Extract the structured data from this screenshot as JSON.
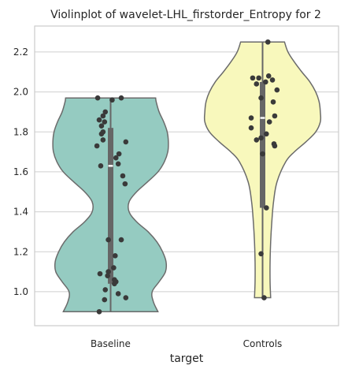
{
  "chart_data": {
    "type": "violin",
    "title": "Violinplot of wavelet-LHL_firstorder_Entropy for 2",
    "xlabel": "target",
    "ylabel": "",
    "ylim": [
      0.83,
      2.33
    ],
    "yticks": [
      1.0,
      1.2,
      1.4,
      1.6,
      1.8,
      2.0,
      2.2
    ],
    "ytick_labels": [
      "1.0",
      "1.2",
      "1.4",
      "1.6",
      "1.8",
      "2.0",
      "2.2"
    ],
    "grid": true,
    "categories": [
      "Baseline",
      "Controls"
    ],
    "series": [
      {
        "category": "Baseline",
        "color": "#95cbc1",
        "min": 0.9,
        "max": 1.97,
        "q1": 1.04,
        "median": 1.63,
        "q3": 1.82,
        "density": [
          [
            0.9,
            0.82
          ],
          [
            0.95,
            0.74
          ],
          [
            1.0,
            0.72
          ],
          [
            1.05,
            0.84
          ],
          [
            1.1,
            0.95
          ],
          [
            1.15,
            0.96
          ],
          [
            1.2,
            0.9
          ],
          [
            1.25,
            0.8
          ],
          [
            1.3,
            0.65
          ],
          [
            1.35,
            0.45
          ],
          [
            1.4,
            0.32
          ],
          [
            1.45,
            0.32
          ],
          [
            1.5,
            0.45
          ],
          [
            1.55,
            0.64
          ],
          [
            1.6,
            0.82
          ],
          [
            1.65,
            0.93
          ],
          [
            1.7,
            0.99
          ],
          [
            1.75,
            1.0
          ],
          [
            1.8,
            0.98
          ],
          [
            1.85,
            0.92
          ],
          [
            1.9,
            0.84
          ],
          [
            1.95,
            0.79
          ],
          [
            1.97,
            0.78
          ]
        ],
        "points": [
          [
            0.9,
            -0.15
          ],
          [
            0.96,
            -0.08
          ],
          [
            0.97,
            0.2
          ],
          [
            0.99,
            0.1
          ],
          [
            1.01,
            -0.07
          ],
          [
            1.04,
            0.05
          ],
          [
            1.05,
            0.07
          ],
          [
            1.06,
            0.05
          ],
          [
            1.08,
            -0.04
          ],
          [
            1.09,
            -0.14
          ],
          [
            1.1,
            -0.03
          ],
          [
            1.12,
            0.04
          ],
          [
            1.18,
            0.06
          ],
          [
            1.26,
            0.14
          ],
          [
            1.26,
            -0.03
          ],
          [
            1.54,
            0.19
          ],
          [
            1.58,
            0.16
          ],
          [
            1.63,
            -0.13
          ],
          [
            1.64,
            0.1
          ],
          [
            1.67,
            0.07
          ],
          [
            1.69,
            0.11
          ],
          [
            1.73,
            -0.18
          ],
          [
            1.75,
            0.2
          ],
          [
            1.76,
            -0.1
          ],
          [
            1.79,
            -0.12
          ],
          [
            1.8,
            -0.1
          ],
          [
            1.83,
            -0.12
          ],
          [
            1.85,
            -0.08
          ],
          [
            1.86,
            -0.15
          ],
          [
            1.88,
            -0.1
          ],
          [
            1.9,
            -0.07
          ],
          [
            1.96,
            0.02
          ],
          [
            1.97,
            0.14
          ],
          [
            1.97,
            -0.17
          ]
        ]
      },
      {
        "category": "Controls",
        "color": "#f8f8bc",
        "min": 0.97,
        "max": 2.25,
        "q1": 1.42,
        "median": 1.87,
        "q3": 2.05,
        "density": [
          [
            0.97,
            0.14
          ],
          [
            1.05,
            0.13
          ],
          [
            1.15,
            0.13
          ],
          [
            1.25,
            0.14
          ],
          [
            1.35,
            0.16
          ],
          [
            1.45,
            0.19
          ],
          [
            1.55,
            0.25
          ],
          [
            1.65,
            0.4
          ],
          [
            1.7,
            0.55
          ],
          [
            1.75,
            0.75
          ],
          [
            1.8,
            0.92
          ],
          [
            1.85,
            1.0
          ],
          [
            1.9,
            1.0
          ],
          [
            1.95,
            0.98
          ],
          [
            2.0,
            0.92
          ],
          [
            2.05,
            0.82
          ],
          [
            2.1,
            0.68
          ],
          [
            2.15,
            0.55
          ],
          [
            2.2,
            0.44
          ],
          [
            2.25,
            0.38
          ]
        ],
        "points": [
          [
            0.97,
            0.02
          ],
          [
            1.19,
            -0.02
          ],
          [
            1.42,
            0.05
          ],
          [
            1.69,
            0.0
          ],
          [
            1.73,
            0.16
          ],
          [
            1.74,
            0.15
          ],
          [
            1.76,
            -0.08
          ],
          [
            1.77,
            -0.02
          ],
          [
            1.79,
            0.05
          ],
          [
            1.82,
            -0.15
          ],
          [
            1.85,
            0.09
          ],
          [
            1.87,
            -0.15
          ],
          [
            1.88,
            0.16
          ],
          [
            1.95,
            0.14
          ],
          [
            1.97,
            -0.02
          ],
          [
            2.01,
            0.19
          ],
          [
            2.04,
            -0.08
          ],
          [
            2.05,
            0.04
          ],
          [
            2.06,
            0.13
          ],
          [
            2.07,
            -0.13
          ],
          [
            2.07,
            -0.05
          ],
          [
            2.08,
            0.08
          ],
          [
            2.25,
            0.07
          ]
        ]
      }
    ]
  }
}
